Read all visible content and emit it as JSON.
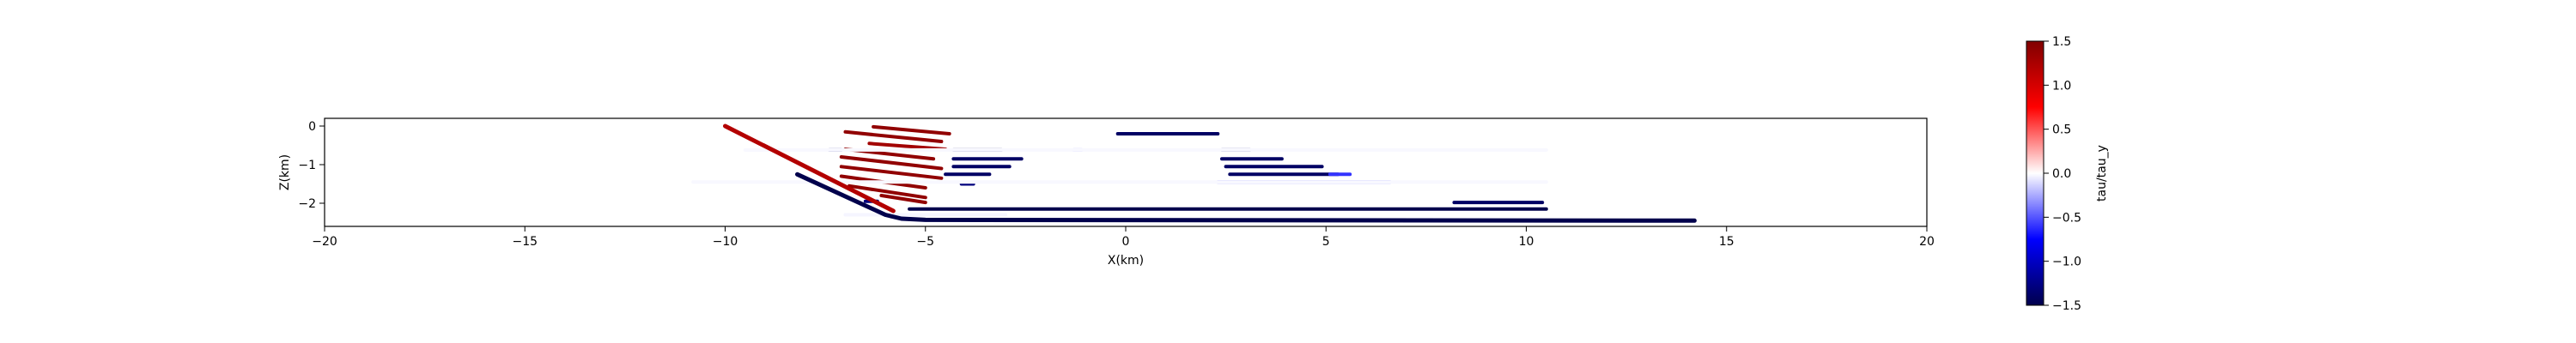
{
  "chart_data": {
    "type": "scatter",
    "title": "",
    "xlabel": "X(km)",
    "ylabel": "Z(km)",
    "xlim": [
      -20,
      20
    ],
    "ylim": [
      -2.6,
      0.2
    ],
    "xticks": [
      -20,
      -15,
      -10,
      -5,
      0,
      5,
      10,
      15,
      20
    ],
    "yticks": [
      0,
      -1,
      -2
    ],
    "grid": false,
    "legend": "none",
    "colorbar": {
      "label": "tau/tau_y",
      "min": -1.5,
      "max": 1.5,
      "ticks": [
        1.5,
        1.0,
        0.5,
        0.0,
        -0.5,
        -1.0,
        -1.5
      ],
      "colormap": "seismic",
      "location": "right"
    },
    "fault": [
      {
        "x": [
          -10.0,
          -5.8
        ],
        "y": [
          0.0,
          -2.2
        ],
        "value": 1.2
      },
      {
        "x": [
          -8.2,
          -6.0,
          -5.6,
          -5.0,
          14.2
        ],
        "y": [
          -1.25,
          -2.3,
          -2.4,
          -2.43,
          -2.45
        ],
        "value": -1.5
      }
    ],
    "shear_segments": [
      {
        "x": [
          -6.3,
          -4.4
        ],
        "y": [
          -0.02,
          -0.2
        ],
        "value": 1.4
      },
      {
        "x": [
          -7.0,
          -4.6
        ],
        "y": [
          -0.15,
          -0.4
        ],
        "value": 1.4
      },
      {
        "x": [
          -6.4,
          -4.5
        ],
        "y": [
          -0.45,
          -0.6
        ],
        "value": 1.3
      },
      {
        "x": [
          -7.0,
          -4.8
        ],
        "y": [
          -0.6,
          -0.85
        ],
        "value": 1.4
      },
      {
        "x": [
          -7.1,
          -4.6
        ],
        "y": [
          -0.8,
          -1.1
        ],
        "value": 1.4
      },
      {
        "x": [
          -7.1,
          -4.6
        ],
        "y": [
          -1.05,
          -1.35
        ],
        "value": 1.4
      },
      {
        "x": [
          -7.1,
          -5.0
        ],
        "y": [
          -1.3,
          -1.6
        ],
        "value": 1.4
      },
      {
        "x": [
          -6.9,
          -5.0
        ],
        "y": [
          -1.55,
          -1.85
        ],
        "value": 1.4
      },
      {
        "x": [
          -6.1,
          -5.0
        ],
        "y": [
          -1.8,
          -1.98
        ],
        "value": 1.4
      },
      {
        "x": [
          -7.4,
          -7.1
        ],
        "y": [
          -0.62,
          -0.62
        ],
        "value": -1.3
      },
      {
        "x": [
          -6.5,
          -6.2
        ],
        "y": [
          -1.95,
          -1.95
        ],
        "value": -1.3
      },
      {
        "x": [
          -4.3,
          -3.1
        ],
        "y": [
          -0.62,
          -0.62
        ],
        "value": -1.4
      },
      {
        "x": [
          -4.3,
          -2.6
        ],
        "y": [
          -0.85,
          -0.85
        ],
        "value": -1.4
      },
      {
        "x": [
          -4.3,
          -2.9
        ],
        "y": [
          -1.05,
          -1.05
        ],
        "value": -1.4
      },
      {
        "x": [
          -4.5,
          -3.4
        ],
        "y": [
          -1.25,
          -1.25
        ],
        "value": -1.4
      },
      {
        "x": [
          -4.1,
          -3.8
        ],
        "y": [
          -1.5,
          -1.5
        ],
        "value": -1.3
      },
      {
        "x": [
          -5.4,
          10.5
        ],
        "y": [
          -2.15,
          -2.15
        ],
        "value": -1.5
      },
      {
        "x": [
          8.2,
          10.4
        ],
        "y": [
          -1.98,
          -1.98
        ],
        "value": -1.4
      },
      {
        "x": [
          -0.2,
          2.3
        ],
        "y": [
          -0.2,
          -0.2
        ],
        "value": -1.4
      },
      {
        "x": [
          2.4,
          3.1
        ],
        "y": [
          -0.62,
          -0.62
        ],
        "value": -1.3
      },
      {
        "x": [
          2.4,
          3.9
        ],
        "y": [
          -0.85,
          -0.85
        ],
        "value": -1.4
      },
      {
        "x": [
          2.5,
          4.9
        ],
        "y": [
          -1.05,
          -1.05
        ],
        "value": -1.4
      },
      {
        "x": [
          2.6,
          5.3
        ],
        "y": [
          -1.25,
          -1.25
        ],
        "value": -1.4
      },
      {
        "x": [
          5.1,
          5.6
        ],
        "y": [
          -1.25,
          -1.25
        ],
        "value": -0.6
      },
      {
        "x": [
          2.3,
          6.6
        ],
        "y": [
          -1.45,
          -1.45
        ],
        "value": -0.4
      },
      {
        "x": [
          -1.3,
          -1.1
        ],
        "y": [
          -0.62,
          -0.62
        ],
        "value": -0.3
      },
      {
        "x": [
          -9.5,
          10.5
        ],
        "y": [
          -0.62,
          -0.62
        ],
        "value": -0.02
      },
      {
        "x": [
          -10.8,
          10.5
        ],
        "y": [
          -1.45,
          -1.45
        ],
        "value": -0.02
      },
      {
        "x": [
          -7.0,
          -3.0
        ],
        "y": [
          -2.3,
          -2.3
        ],
        "value": -0.03
      }
    ]
  }
}
